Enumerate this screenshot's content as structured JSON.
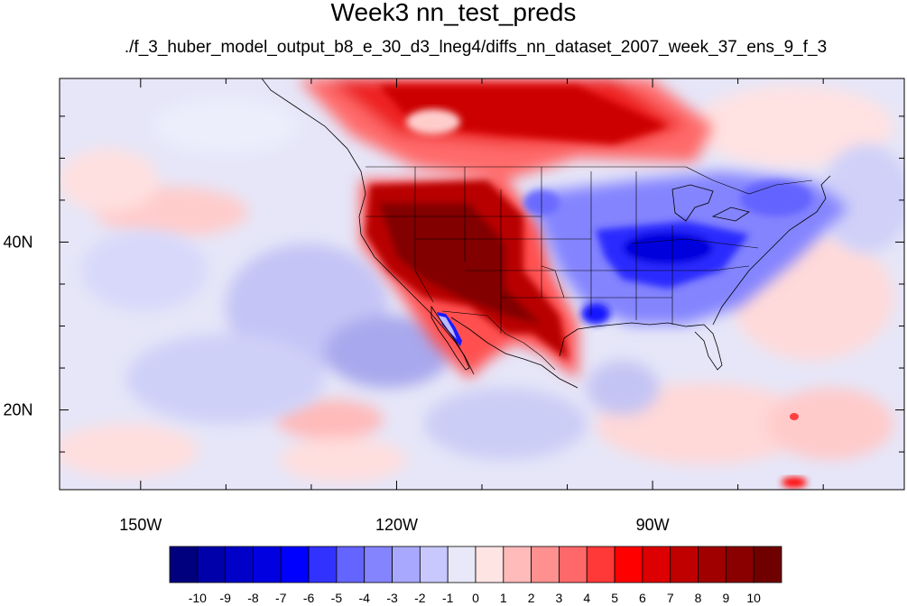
{
  "title": "Week3 nn_test_preds",
  "subtitle": "./f_3_huber_model_output_b8_e_30_d3_lneg4/diffs_nn_dataset_2007_week_37_ens_9_f_3",
  "map": {
    "lon_ticks": [
      {
        "lon": -150,
        "label": "150W"
      },
      {
        "lon": -120,
        "label": "120W"
      },
      {
        "lon": -90,
        "label": "90W"
      }
    ],
    "lat_ticks": [
      {
        "lat": 40,
        "label": "40N"
      },
      {
        "lat": 20,
        "label": "20N"
      }
    ],
    "lon_range": [
      -159.5,
      -60.5
    ],
    "lat_range": [
      10.5,
      59.5
    ],
    "features": [
      "positive anomaly (red) over western US, Mexico and western Canada",
      "negative anomaly (blue) over eastern US",
      "weak negative anomaly over eastern Pacific"
    ]
  },
  "colorbar": {
    "labels": [
      "-10",
      "-9",
      "-8",
      "-7",
      "-6",
      "-5",
      "-4",
      "-3",
      "-2",
      "-1",
      "0",
      "1",
      "2",
      "3",
      "4",
      "5",
      "6",
      "7",
      "8",
      "9",
      "10"
    ],
    "colors": [
      "#00007f",
      "#0000aa",
      "#0000c8",
      "#0000e0",
      "#0000ff",
      "#3232ff",
      "#6464ff",
      "#8484ff",
      "#a8a8ff",
      "#c8c8ff",
      "#e8e8f8",
      "#ffe4e4",
      "#ffbaba",
      "#ff9090",
      "#ff6868",
      "#ff3838",
      "#ff0000",
      "#dc0000",
      "#c00000",
      "#a00000",
      "#8a0000",
      "#700000"
    ]
  }
}
